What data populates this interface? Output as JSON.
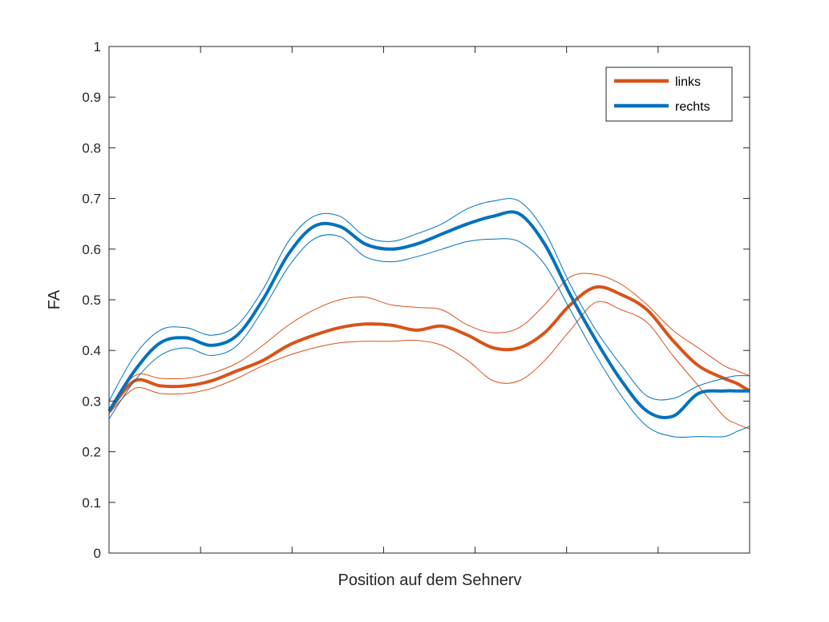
{
  "chart_data": {
    "type": "line",
    "title": "",
    "xlabel": "Position auf dem Sehnerv",
    "ylabel": "FA",
    "xlim": [
      0,
      100
    ],
    "ylim": [
      0,
      1
    ],
    "yticks": [
      "0",
      "0.1",
      "0.2",
      "0.3",
      "0.4",
      "0.5",
      "0.6",
      "0.7",
      "0.8",
      "0.9",
      "1"
    ],
    "xticks_count": 6,
    "grid": false,
    "legend_position": "top-right",
    "x": [
      0,
      4,
      8,
      12,
      16,
      20,
      24,
      28,
      32,
      36,
      40,
      44,
      48,
      52,
      56,
      60,
      64,
      68,
      72,
      76,
      80,
      84,
      88,
      92,
      96,
      98,
      100
    ],
    "series": [
      {
        "name": "links",
        "color": "#D95319",
        "values": [
          0.28,
          0.34,
          0.33,
          0.33,
          0.34,
          0.36,
          0.38,
          0.41,
          0.43,
          0.445,
          0.452,
          0.45,
          0.44,
          0.448,
          0.43,
          0.405,
          0.405,
          0.435,
          0.49,
          0.525,
          0.51,
          0.48,
          0.42,
          0.37,
          0.345,
          0.335,
          0.32
        ],
        "upper": [
          0.285,
          0.35,
          0.345,
          0.345,
          0.355,
          0.375,
          0.41,
          0.45,
          0.48,
          0.5,
          0.505,
          0.49,
          0.485,
          0.48,
          0.45,
          0.435,
          0.445,
          0.49,
          0.545,
          0.55,
          0.53,
          0.49,
          0.44,
          0.405,
          0.37,
          0.36,
          0.35
        ],
        "lower": [
          0.275,
          0.325,
          0.315,
          0.315,
          0.325,
          0.345,
          0.37,
          0.39,
          0.405,
          0.415,
          0.418,
          0.418,
          0.42,
          0.41,
          0.38,
          0.34,
          0.34,
          0.38,
          0.44,
          0.495,
          0.48,
          0.455,
          0.39,
          0.33,
          0.27,
          0.255,
          0.245
        ]
      },
      {
        "name": "rechts",
        "color": "#0072BD",
        "values": [
          0.28,
          0.36,
          0.415,
          0.425,
          0.41,
          0.43,
          0.5,
          0.59,
          0.645,
          0.645,
          0.61,
          0.6,
          0.61,
          0.63,
          0.65,
          0.665,
          0.67,
          0.61,
          0.51,
          0.42,
          0.34,
          0.28,
          0.27,
          0.315,
          0.32,
          0.32,
          0.32
        ],
        "upper": [
          0.3,
          0.39,
          0.44,
          0.445,
          0.43,
          0.45,
          0.52,
          0.615,
          0.665,
          0.665,
          0.625,
          0.615,
          0.63,
          0.65,
          0.68,
          0.695,
          0.695,
          0.635,
          0.53,
          0.44,
          0.37,
          0.31,
          0.305,
          0.33,
          0.345,
          0.35,
          0.35
        ],
        "lower": [
          0.265,
          0.34,
          0.39,
          0.405,
          0.39,
          0.41,
          0.48,
          0.565,
          0.62,
          0.625,
          0.585,
          0.575,
          0.585,
          0.6,
          0.615,
          0.62,
          0.615,
          0.57,
          0.48,
          0.39,
          0.31,
          0.25,
          0.23,
          0.23,
          0.23,
          0.24,
          0.25
        ]
      }
    ]
  }
}
